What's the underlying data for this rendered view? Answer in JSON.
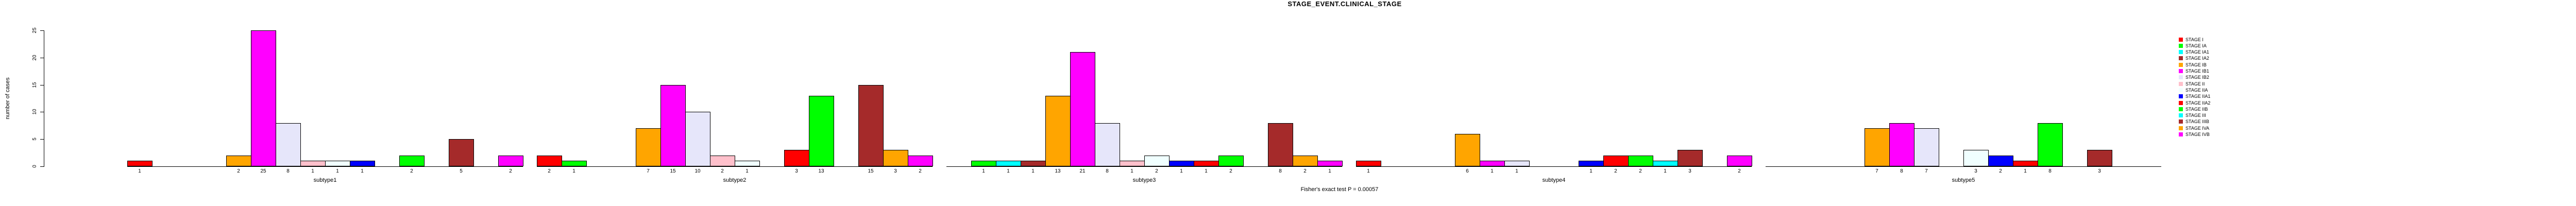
{
  "title": "STAGE_EVENT.CLINICAL_STAGE",
  "ylabel": "number of cases",
  "caption": "Fisher's exact test P = 0.00057",
  "chart_data": {
    "type": "bar",
    "title": "STAGE_EVENT.CLINICAL_STAGE",
    "xlabel": "",
    "ylabel": "number of cases",
    "ylim": [
      0,
      25
    ],
    "yticks": [
      0,
      5,
      10,
      15,
      20,
      25
    ],
    "grid": false,
    "legend_position": "right",
    "categories": [
      "STAGE I",
      "STAGE IA",
      "STAGE IA1",
      "STAGE IA2",
      "STAGE IB",
      "STAGE IB1",
      "STAGE IB2",
      "STAGE II",
      "STAGE IIA",
      "STAGE IIA1",
      "STAGE IIA2",
      "STAGE IIB",
      "STAGE III",
      "STAGE IIIB",
      "STAGE IVA",
      "STAGE IVB"
    ],
    "colors": [
      "#FF0000",
      "#00FF00",
      "#00FFFF",
      "#A52A2A",
      "#FFA500",
      "#FF00FF",
      "#E6E6FA",
      "#FFC0CB",
      "#F0FFFF",
      "#0000FF",
      "#FF0000",
      "#00FF00",
      "#00FFFF",
      "#A52A2A",
      "#FFA500",
      "#FF00FF"
    ],
    "series": [
      {
        "name": "subtype1",
        "values": [
          1,
          0,
          0,
          0,
          2,
          25,
          8,
          1,
          1,
          1,
          0,
          2,
          0,
          5,
          0,
          2
        ]
      },
      {
        "name": "subtype2",
        "values": [
          2,
          1,
          0,
          0,
          7,
          15,
          10,
          2,
          1,
          0,
          3,
          13,
          0,
          15,
          3,
          2
        ]
      },
      {
        "name": "subtype3",
        "values": [
          0,
          1,
          1,
          1,
          13,
          21,
          8,
          1,
          2,
          1,
          1,
          2,
          0,
          8,
          2,
          1
        ]
      },
      {
        "name": "subtype4",
        "values": [
          1,
          0,
          0,
          0,
          6,
          1,
          1,
          0,
          0,
          1,
          2,
          2,
          1,
          3,
          0,
          2
        ]
      },
      {
        "name": "subtype5",
        "values": [
          0,
          0,
          0,
          0,
          7,
          8,
          7,
          0,
          3,
          2,
          1,
          8,
          0,
          3,
          0,
          0
        ]
      }
    ]
  }
}
